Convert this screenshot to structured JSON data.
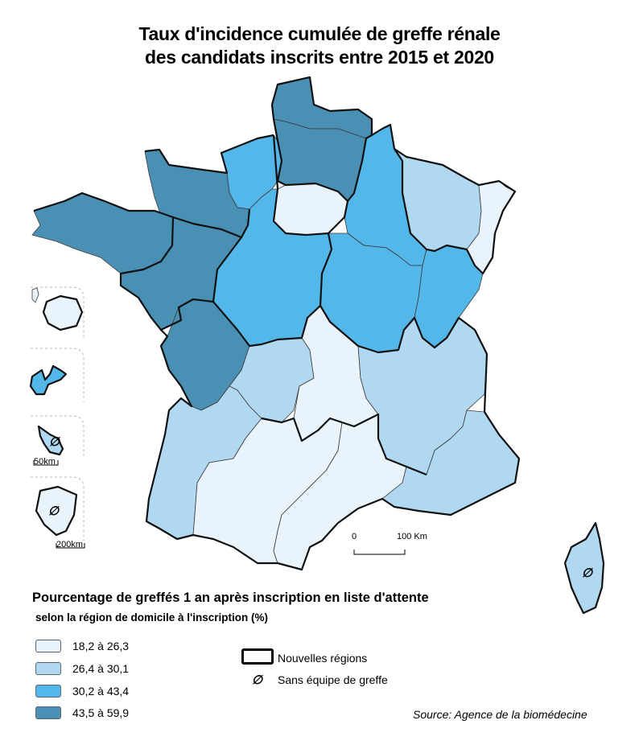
{
  "title": {
    "line1": "Taux d'incidence cumulée de greffe rénale",
    "line2": "des candidats inscrits entre 2015 et 2020"
  },
  "legend": {
    "title": "Pourcentage de greffés 1 an après inscription en liste d'attente",
    "subtitle": "selon la région de domicile à l'inscription (%)",
    "classes": [
      {
        "label": "18,2 à 26,3",
        "color": "#e8f3fc"
      },
      {
        "label": "26,4 à 30,1",
        "color": "#b0d9f1"
      },
      {
        "label": "30,2 à 43,4",
        "color": "#54b7ea"
      },
      {
        "label": "43,5 à 59,9",
        "color": "#4a90b5"
      }
    ],
    "boundary_label": "Nouvelles régions",
    "no_team_symbol": "∅",
    "no_team_label": "Sans équipe de greffe"
  },
  "scale_main": {
    "zero": "0",
    "end": "100 Km"
  },
  "scale_inset1": "50km",
  "scale_inset2": "200km",
  "source": "Source: Agence de la biomédecine",
  "regions": [
    {
      "id": "nord",
      "class": 4
    },
    {
      "id": "picardie",
      "class": 4
    },
    {
      "id": "haute-normandie",
      "class": 3
    },
    {
      "id": "basse-normandie",
      "class": 4
    },
    {
      "id": "bretagne",
      "class": 4
    },
    {
      "id": "pays-de-la-loire",
      "class": 4
    },
    {
      "id": "poitou-charentes",
      "class": 4
    },
    {
      "id": "ile-de-france",
      "class": 1
    },
    {
      "id": "centre",
      "class": 3
    },
    {
      "id": "champagne-ardenne",
      "class": 3
    },
    {
      "id": "lorraine",
      "class": 2
    },
    {
      "id": "alsace",
      "class": 1
    },
    {
      "id": "bourgogne",
      "class": 3
    },
    {
      "id": "franche-comte",
      "class": 3
    },
    {
      "id": "limousin",
      "class": 2
    },
    {
      "id": "aquitaine",
      "class": 2
    },
    {
      "id": "auvergne",
      "class": 1
    },
    {
      "id": "rhone-alpes",
      "class": 2
    },
    {
      "id": "midi-pyrenees",
      "class": 1
    },
    {
      "id": "languedoc-roussillon",
      "class": 1
    },
    {
      "id": "paca",
      "class": 2
    },
    {
      "id": "corse",
      "class": 2
    },
    {
      "id": "guadeloupe",
      "class": 3
    },
    {
      "id": "martinique",
      "class": 2
    },
    {
      "id": "reunion",
      "class": 1
    },
    {
      "id": "guyane",
      "class": 1
    },
    {
      "id": "mayotte",
      "class": 1
    }
  ]
}
